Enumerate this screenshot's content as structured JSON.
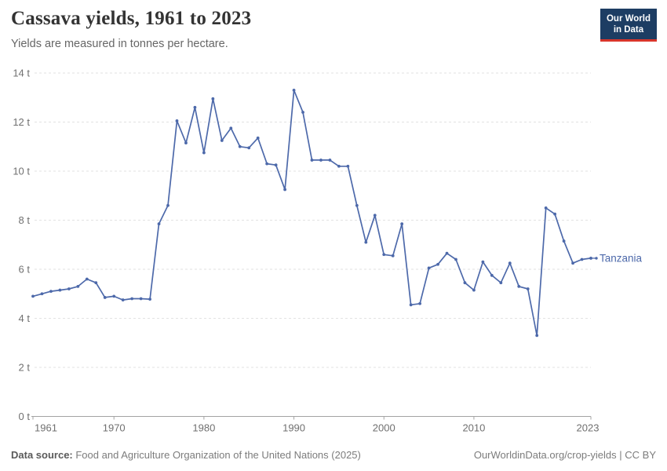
{
  "header": {
    "title": "Cassava yields, 1961 to 2023",
    "subtitle": "Yields are measured in tonnes per hectare.",
    "logo_line1": "Our World",
    "logo_line2": "in Data"
  },
  "legend": {
    "entity": "Tanzania"
  },
  "footer": {
    "source_label": "Data source:",
    "source_text": " Food and Agriculture Organization of the United Nations (2025)",
    "credit": "OurWorldinData.org/crop-yields | CC BY"
  },
  "colors": {
    "line": "#4d69aa",
    "grid": "#e2e2e2",
    "axis": "#a3a3a3",
    "tick_text": "#707070",
    "logo_bg": "#1d3d63",
    "logo_red": "#d8352b"
  },
  "chart_data": {
    "type": "line",
    "title": "Cassava yields, 1961 to 2023",
    "xlabel": "",
    "ylabel": "tonnes per hectare",
    "unit": "t",
    "ylim": [
      0,
      14
    ],
    "y_ticks": [
      0,
      2,
      4,
      6,
      8,
      10,
      12,
      14
    ],
    "y_tick_suffix": " t",
    "x_ticks": [
      1961,
      1970,
      1980,
      1990,
      2000,
      2010,
      2023
    ],
    "grid": true,
    "legend_position": "end-of-line",
    "series": [
      {
        "name": "Tanzania",
        "x": [
          1961,
          1962,
          1963,
          1964,
          1965,
          1966,
          1967,
          1968,
          1969,
          1970,
          1971,
          1972,
          1973,
          1974,
          1975,
          1976,
          1977,
          1978,
          1979,
          1980,
          1981,
          1982,
          1983,
          1984,
          1985,
          1986,
          1987,
          1988,
          1989,
          1990,
          1991,
          1992,
          1993,
          1994,
          1995,
          1996,
          1997,
          1998,
          1999,
          2000,
          2001,
          2002,
          2003,
          2004,
          2005,
          2006,
          2007,
          2008,
          2009,
          2010,
          2011,
          2012,
          2013,
          2014,
          2015,
          2016,
          2017,
          2018,
          2019,
          2020,
          2021,
          2022,
          2023
        ],
        "values": [
          4.9,
          5.0,
          5.1,
          5.15,
          5.2,
          5.3,
          5.6,
          5.45,
          4.85,
          4.9,
          4.75,
          4.8,
          4.8,
          4.78,
          7.85,
          8.6,
          12.05,
          11.15,
          12.6,
          10.75,
          12.95,
          11.25,
          11.75,
          11.0,
          10.95,
          11.35,
          10.3,
          10.25,
          9.25,
          13.3,
          12.4,
          10.45,
          10.45,
          10.45,
          10.2,
          10.2,
          8.6,
          7.1,
          8.2,
          6.6,
          6.55,
          7.85,
          4.55,
          4.6,
          6.05,
          6.2,
          6.65,
          6.4,
          5.45,
          5.15,
          6.3,
          5.75,
          5.45,
          6.25,
          5.3,
          5.2,
          3.3,
          8.5,
          8.25,
          7.15,
          6.25,
          6.4,
          6.45
        ]
      }
    ]
  }
}
